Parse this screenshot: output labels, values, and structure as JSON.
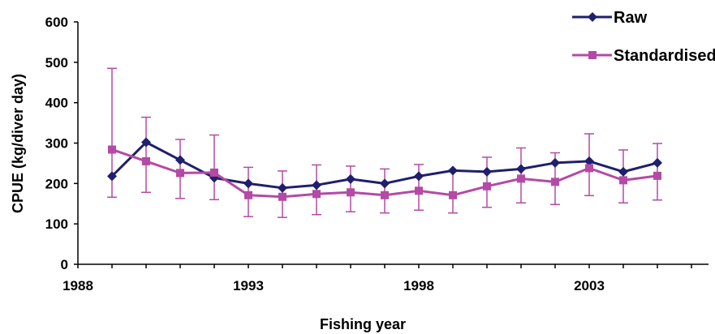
{
  "chart_data": {
    "type": "line",
    "title": "",
    "xlabel": "Fishing year",
    "ylabel": "CPUE (kg/diver day)",
    "xlim": [
      1988,
      2006.5
    ],
    "ylim": [
      0,
      600
    ],
    "x_ticks": [
      1988,
      1993,
      1998,
      2003
    ],
    "y_ticks": [
      0,
      100,
      200,
      300,
      400,
      500,
      600
    ],
    "x_tick_labels": [
      "1988",
      "1993",
      "1998",
      "2003"
    ],
    "y_tick_labels": [
      "0",
      "100",
      "200",
      "300",
      "400",
      "500",
      "600"
    ],
    "grid": false,
    "legend_position": "top-right",
    "x": [
      1989,
      1990,
      1991,
      1992,
      1993,
      1994,
      1995,
      1996,
      1997,
      1998,
      1999,
      2000,
      2001,
      2002,
      2003,
      2004,
      2005
    ],
    "series": [
      {
        "name": "Raw",
        "color": "#1f1f6e",
        "marker": "diamond",
        "values": [
          218,
          302,
          258,
          214,
          200,
          189,
          196,
          211,
          200,
          218,
          232,
          229,
          236,
          251,
          255,
          229,
          251
        ]
      },
      {
        "name": "Standardised",
        "color": "#b44aa5",
        "marker": "square",
        "values": [
          284,
          255,
          226,
          227,
          171,
          167,
          174,
          178,
          171,
          182,
          171,
          193,
          212,
          204,
          238,
          208,
          219
        ],
        "error_lower": [
          166,
          178,
          163,
          160,
          118,
          116,
          123,
          130,
          127,
          134,
          127,
          141,
          152,
          148,
          170,
          152,
          159
        ],
        "error_upper": [
          485,
          364,
          309,
          320,
          240,
          231,
          246,
          243,
          236,
          247,
          232,
          265,
          288,
          276,
          323,
          283,
          299
        ]
      }
    ]
  }
}
